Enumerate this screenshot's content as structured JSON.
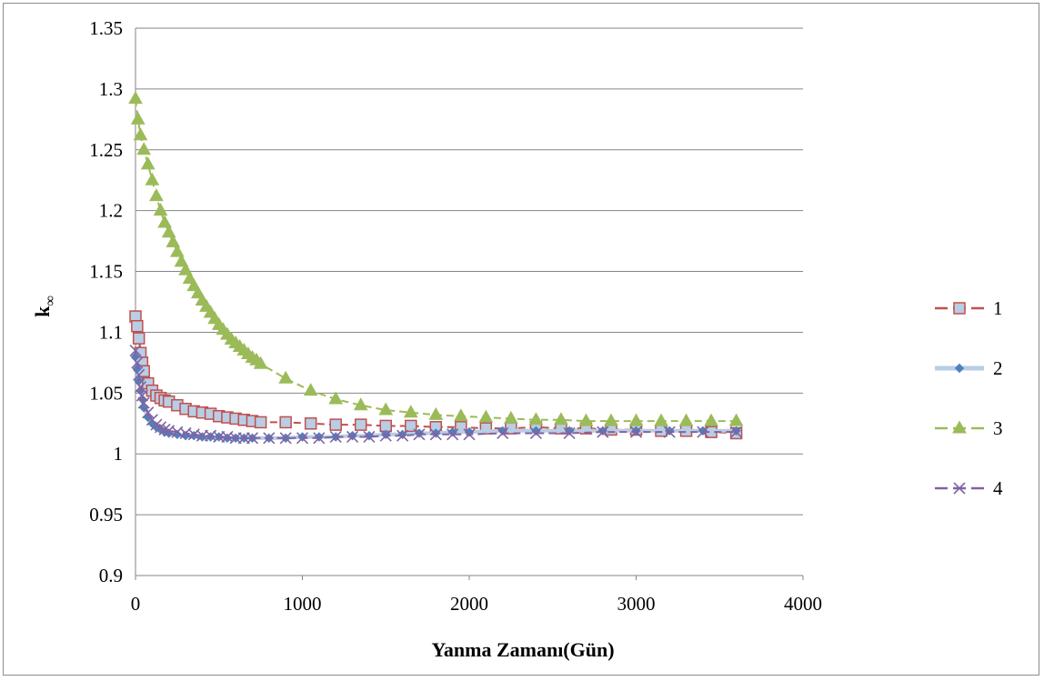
{
  "chart_data": {
    "type": "line",
    "xlabel": "Yanma Zamanı(Gün)",
    "ylabel_base": "k",
    "ylabel_sub": "∞",
    "xlim": [
      0,
      4000
    ],
    "ylim": [
      0.9,
      1.35
    ],
    "xticks": [
      0,
      1000,
      2000,
      3000,
      4000
    ],
    "xtick_labels": [
      "0",
      "1000",
      "2000",
      "3000",
      "4000"
    ],
    "yticks": [
      0.9,
      0.95,
      1,
      1.05,
      1.1,
      1.15,
      1.2,
      1.25,
      1.3,
      1.35
    ],
    "ytick_labels": [
      "0.9",
      "0.95",
      "1",
      "1.05",
      "1.1",
      "1.15",
      "1.2",
      "1.25",
      "1.3",
      "1.35"
    ],
    "grid": "horizontal",
    "legend_position": "right",
    "series": [
      {
        "name": "1",
        "color": "#c0504d",
        "fill": "#b9cde5",
        "marker": "square",
        "line": "dashed",
        "x": [
          0,
          10,
          20,
          30,
          40,
          50,
          75,
          100,
          125,
          150,
          175,
          200,
          250,
          300,
          350,
          400,
          450,
          500,
          550,
          600,
          650,
          700,
          750,
          900,
          1050,
          1200,
          1350,
          1500,
          1650,
          1800,
          1950,
          2100,
          2250,
          2400,
          2550,
          2700,
          2850,
          3000,
          3150,
          3300,
          3450,
          3600
        ],
        "y": [
          1.113,
          1.105,
          1.095,
          1.083,
          1.075,
          1.068,
          1.058,
          1.052,
          1.048,
          1.046,
          1.044,
          1.043,
          1.04,
          1.037,
          1.035,
          1.034,
          1.033,
          1.031,
          1.03,
          1.029,
          1.028,
          1.027,
          1.026,
          1.026,
          1.025,
          1.024,
          1.024,
          1.023,
          1.023,
          1.022,
          1.022,
          1.021,
          1.021,
          1.022,
          1.021,
          1.021,
          1.02,
          1.02,
          1.019,
          1.019,
          1.018,
          1.017
        ]
      },
      {
        "name": "2",
        "color": "#b9cde5",
        "fill": "#4f81bd",
        "marker": "diamond",
        "line": "solid",
        "x": [
          0,
          10,
          20,
          30,
          40,
          50,
          75,
          100,
          125,
          150,
          175,
          200,
          250,
          300,
          350,
          400,
          450,
          500,
          550,
          600,
          650,
          700,
          800,
          900,
          1000,
          1100,
          1200,
          1300,
          1400,
          1500,
          1600,
          1700,
          1800,
          1900,
          2000,
          2200,
          2400,
          2600,
          2800,
          3000,
          3200,
          3400,
          3600
        ],
        "y": [
          1.08,
          1.07,
          1.06,
          1.052,
          1.045,
          1.038,
          1.03,
          1.025,
          1.022,
          1.02,
          1.018,
          1.017,
          1.016,
          1.015,
          1.015,
          1.014,
          1.014,
          1.014,
          1.013,
          1.013,
          1.013,
          1.013,
          1.013,
          1.013,
          1.014,
          1.014,
          1.014,
          1.015,
          1.015,
          1.016,
          1.016,
          1.017,
          1.017,
          1.018,
          1.018,
          1.019,
          1.019,
          1.019,
          1.019,
          1.019,
          1.019,
          1.019,
          1.019
        ]
      },
      {
        "name": "3",
        "color": "#9bbb59",
        "fill": "#9bbb59",
        "marker": "triangle",
        "line": "dashed",
        "x": [
          0,
          15,
          30,
          50,
          75,
          100,
          125,
          150,
          175,
          200,
          225,
          250,
          275,
          300,
          325,
          350,
          375,
          400,
          425,
          450,
          475,
          500,
          525,
          550,
          575,
          600,
          625,
          650,
          675,
          700,
          725,
          750,
          900,
          1050,
          1200,
          1350,
          1500,
          1650,
          1800,
          1950,
          2100,
          2250,
          2400,
          2550,
          2700,
          2850,
          3000,
          3150,
          3300,
          3450,
          3600
        ],
        "y": [
          1.292,
          1.275,
          1.262,
          1.25,
          1.238,
          1.225,
          1.212,
          1.2,
          1.19,
          1.182,
          1.174,
          1.166,
          1.158,
          1.151,
          1.144,
          1.138,
          1.132,
          1.126,
          1.121,
          1.116,
          1.111,
          1.106,
          1.102,
          1.098,
          1.094,
          1.091,
          1.088,
          1.085,
          1.082,
          1.079,
          1.077,
          1.074,
          1.062,
          1.052,
          1.045,
          1.04,
          1.036,
          1.034,
          1.032,
          1.031,
          1.03,
          1.029,
          1.028,
          1.028,
          1.027,
          1.027,
          1.027,
          1.027,
          1.027,
          1.027,
          1.027
        ]
      },
      {
        "name": "4",
        "color": "#8064a2",
        "fill": "#8064a2",
        "marker": "x",
        "line": "dashed",
        "x": [
          0,
          10,
          20,
          30,
          40,
          50,
          75,
          100,
          125,
          150,
          175,
          200,
          250,
          300,
          350,
          400,
          450,
          500,
          550,
          600,
          650,
          700,
          800,
          900,
          1000,
          1100,
          1200,
          1300,
          1400,
          1500,
          1600,
          1700,
          1800,
          1900,
          2000,
          2200,
          2400,
          2600,
          2800,
          3000,
          3200,
          3400,
          3600
        ],
        "y": [
          1.085,
          1.075,
          1.065,
          1.055,
          1.048,
          1.042,
          1.034,
          1.028,
          1.024,
          1.022,
          1.02,
          1.019,
          1.018,
          1.017,
          1.016,
          1.015,
          1.015,
          1.014,
          1.014,
          1.013,
          1.013,
          1.013,
          1.013,
          1.013,
          1.013,
          1.013,
          1.014,
          1.014,
          1.014,
          1.015,
          1.015,
          1.016,
          1.016,
          1.016,
          1.016,
          1.017,
          1.017,
          1.017,
          1.018,
          1.018,
          1.018,
          1.018,
          1.018
        ]
      }
    ]
  }
}
